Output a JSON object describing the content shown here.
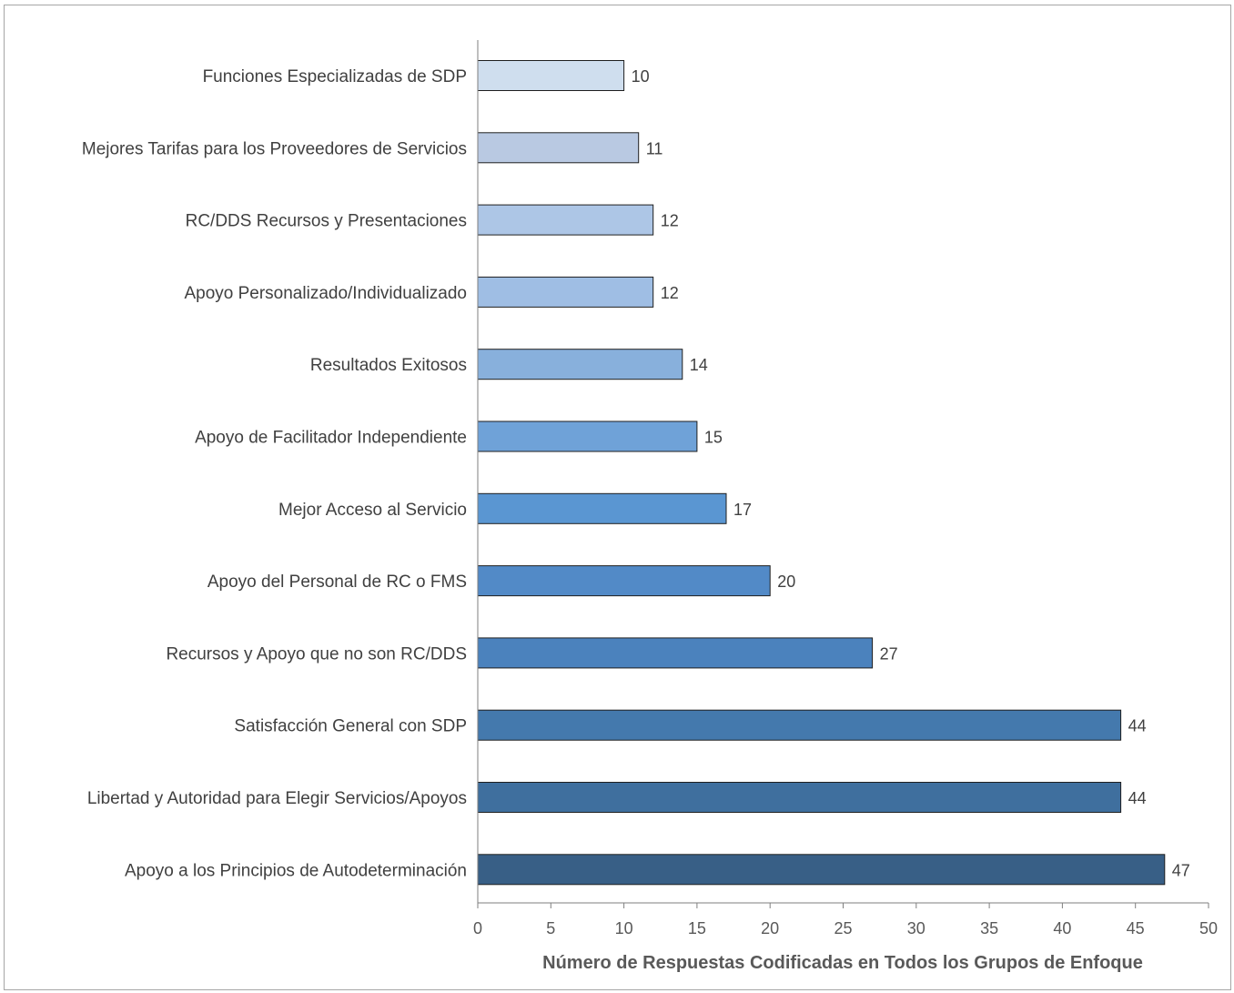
{
  "chart_data": {
    "type": "bar",
    "orientation": "horizontal",
    "title": "",
    "xlabel": "Número de Respuestas Codificadas en Todos los Grupos de Enfoque",
    "ylabel": "",
    "xlim": [
      0,
      50
    ],
    "x_ticks": [
      "0",
      "5",
      "10",
      "15",
      "20",
      "25",
      "30",
      "35",
      "40",
      "45",
      "50"
    ],
    "grid": false,
    "legend": "none",
    "data_labels": true,
    "categories": [
      "Funciones Especializadas de SDP",
      "Mejores Tarifas para los Proveedores de Servicios",
      "RC/DDS Recursos y Presentaciones",
      "Apoyo Personalizado/Individualizado",
      "Resultados Exitosos",
      "Apoyo de Facilitador Independiente",
      "Mejor Acceso al Servicio",
      "Apoyo del Personal de RC o FMS",
      "Recursos y Apoyo que no son RC/DDS",
      "Satisfacción General con SDP",
      "Libertad y Autoridad para Elegir Servicios/Apoyos",
      "Apoyo a los Principios de Autodeterminación"
    ],
    "values": [
      10,
      11,
      12,
      12,
      14,
      15,
      17,
      20,
      27,
      44,
      44,
      47
    ],
    "colors": [
      "#cfdeee",
      "#b9c9e2",
      "#adc6e6",
      "#9fbee4",
      "#88b0dc",
      "#6fa2d8",
      "#5a96d2",
      "#528ac7",
      "#4b82bd",
      "#4479ad",
      "#3f6f9e",
      "#385f86"
    ]
  }
}
